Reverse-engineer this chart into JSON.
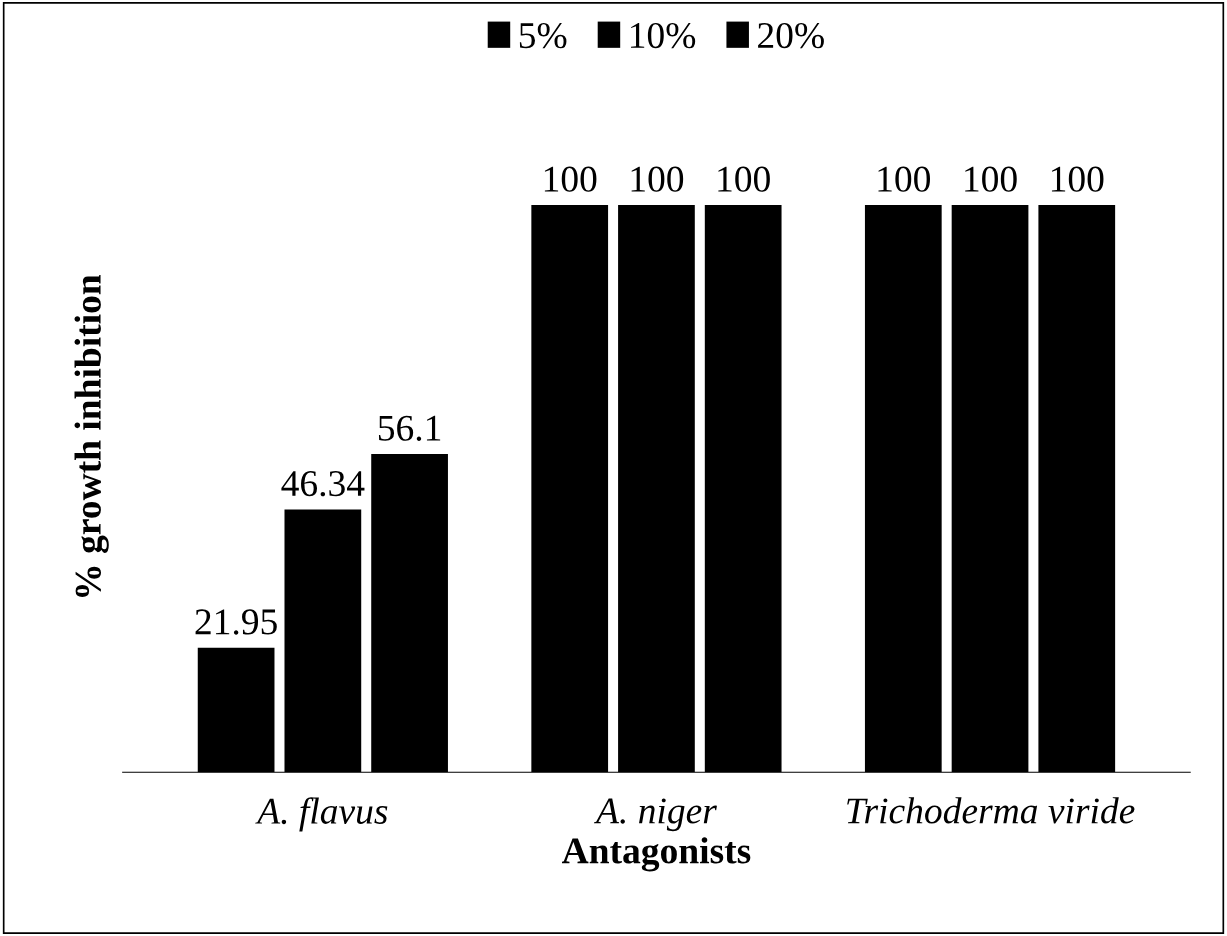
{
  "chart_data": {
    "type": "bar",
    "ylabel": "% growth inhibition",
    "xlabel": "Antagonists",
    "categories": [
      "A. flavus",
      "A. niger",
      "Trichoderma viride"
    ],
    "series": [
      {
        "name": "5%",
        "color": "#000000",
        "values": [
          21.95,
          100,
          100
        ]
      },
      {
        "name": "10%",
        "color": "#000000",
        "values": [
          46.34,
          100,
          100
        ]
      },
      {
        "name": "20%",
        "color": "#000000",
        "values": [
          56.1,
          100,
          100
        ]
      }
    ],
    "data_labels": true,
    "legend": "top",
    "grid": false,
    "tick_labels": "x"
  }
}
